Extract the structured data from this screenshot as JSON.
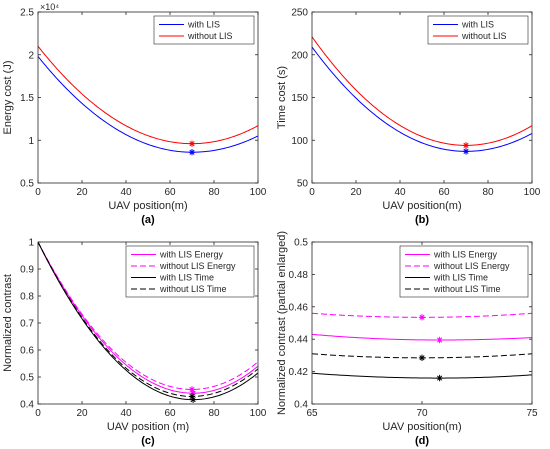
{
  "chart_data": [
    {
      "id": "a",
      "type": "line",
      "panel_label": "(a)",
      "xlabel": "UAV position(m)",
      "ylabel": "Energy cost (J)",
      "exponent_label": "×10⁴",
      "xlim": [
        0,
        100
      ],
      "ylim": [
        0.5,
        2.5
      ],
      "xticks": [
        0,
        20,
        40,
        60,
        80,
        100
      ],
      "yticks": [
        0.5,
        1,
        1.5,
        2,
        2.5
      ],
      "ytick_labels": [
        "0.5",
        "1",
        "1.5",
        "2",
        "2.5"
      ],
      "legend_position": "top-right",
      "series": [
        {
          "name": "with LIS",
          "color": "#0000ff",
          "dash": "solid",
          "start": 1.98,
          "min_x": 70,
          "min_y": 0.86,
          "end": 1.05
        },
        {
          "name": "without LIS",
          "color": "#ff0000",
          "dash": "solid",
          "start": 2.1,
          "min_x": 70,
          "min_y": 0.96,
          "end": 1.17
        }
      ]
    },
    {
      "id": "b",
      "type": "line",
      "panel_label": "(b)",
      "xlabel": "UAV position(m)",
      "ylabel": "Time cost (s)",
      "xlim": [
        0,
        100
      ],
      "ylim": [
        50,
        250
      ],
      "xticks": [
        0,
        20,
        40,
        60,
        80,
        100
      ],
      "yticks": [
        50,
        100,
        150,
        200,
        250
      ],
      "ytick_labels": [
        "50",
        "100",
        "150",
        "200",
        "250"
      ],
      "legend_position": "top-right",
      "series": [
        {
          "name": "with LIS",
          "color": "#0000ff",
          "dash": "solid",
          "start": 209,
          "min_x": 70,
          "min_y": 87,
          "end": 108
        },
        {
          "name": "without LIS",
          "color": "#ff0000",
          "dash": "solid",
          "start": 221,
          "min_x": 70,
          "min_y": 94,
          "end": 117
        }
      ]
    },
    {
      "id": "c",
      "type": "line",
      "panel_label": "(c)",
      "xlabel": "UAV position (m)",
      "ylabel": "Normalized contrast",
      "xlim": [
        0,
        100
      ],
      "ylim": [
        0.4,
        1
      ],
      "xticks": [
        0,
        20,
        40,
        60,
        80,
        100
      ],
      "yticks": [
        0.4,
        0.5,
        0.6,
        0.7,
        0.8,
        0.9,
        1
      ],
      "ytick_labels": [
        "0.4",
        "0.5",
        "0.6",
        "0.7",
        "0.8",
        "0.9",
        "1"
      ],
      "legend_position": "top-right",
      "series": [
        {
          "name": "with LIS Energy",
          "color": "#ff00ff",
          "dash": "solid",
          "start": 1.0,
          "min_x": 70.5,
          "min_y": 0.44,
          "end": 0.54
        },
        {
          "name": "without LIS Energy",
          "color": "#ff00ff",
          "dash": "dashed",
          "start": 1.0,
          "min_x": 70,
          "min_y": 0.454,
          "end": 0.556
        },
        {
          "name": "with LIS Time",
          "color": "#000000",
          "dash": "solid",
          "start": 1.0,
          "min_x": 70.5,
          "min_y": 0.416,
          "end": 0.515
        },
        {
          "name": "without LIS Time",
          "color": "#000000",
          "dash": "dashed",
          "start": 1.0,
          "min_x": 70,
          "min_y": 0.428,
          "end": 0.53
        }
      ]
    },
    {
      "id": "d",
      "type": "line",
      "panel_label": "(d)",
      "xlabel": "UAV position(m)",
      "ylabel": "Normalized contrast (partial enlarged)",
      "xlim": [
        65,
        75
      ],
      "ylim": [
        0.4,
        0.5
      ],
      "xticks": [
        65,
        70,
        75
      ],
      "yticks": [
        0.4,
        0.42,
        0.44,
        0.46,
        0.48,
        0.5
      ],
      "ytick_labels": [
        "0.4",
        "0.42",
        "0.44",
        "0.46",
        "0.48",
        "0.5"
      ],
      "legend_position": "top-right",
      "series": [
        {
          "name": "with LIS Energy",
          "color": "#ff00ff",
          "dash": "solid",
          "x": [
            65,
            70.8,
            75
          ],
          "y": [
            0.443,
            0.4395,
            0.441
          ],
          "marker_x": 70.8,
          "marker_y": 0.4395
        },
        {
          "name": "without LIS Energy",
          "color": "#ff00ff",
          "dash": "dashed",
          "x": [
            65,
            70,
            75
          ],
          "y": [
            0.456,
            0.4535,
            0.456
          ],
          "marker_x": 70,
          "marker_y": 0.4535
        },
        {
          "name": "with LIS Time",
          "color": "#000000",
          "dash": "solid",
          "x": [
            65,
            70.8,
            75
          ],
          "y": [
            0.419,
            0.416,
            0.418
          ],
          "marker_x": 70.8,
          "marker_y": 0.416
        },
        {
          "name": "without LIS Time",
          "color": "#000000",
          "dash": "dashed",
          "x": [
            65,
            70,
            75
          ],
          "y": [
            0.431,
            0.4285,
            0.431
          ],
          "marker_x": 70,
          "marker_y": 0.4285
        }
      ]
    }
  ]
}
